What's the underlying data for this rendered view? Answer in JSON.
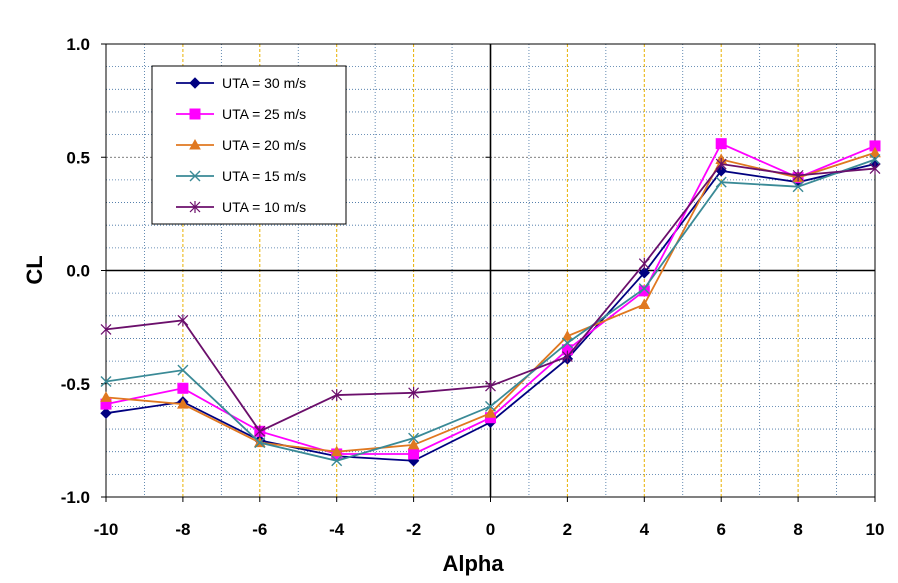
{
  "chart_data": {
    "type": "line",
    "xlabel": "Alpha",
    "ylabel": "CL",
    "xlim": [
      -10,
      10
    ],
    "ylim": [
      -1.0,
      1.0
    ],
    "x": [
      -10,
      -8,
      -6,
      -4,
      -2,
      0,
      2,
      4,
      6,
      8,
      10
    ],
    "x_tick_labels": [
      "-10",
      "-8",
      "-6",
      "-4",
      "-2",
      "0",
      "2",
      "4",
      "6",
      "8",
      "10"
    ],
    "y_ticks": [
      -1.0,
      -0.5,
      0.0,
      0.5,
      1.0
    ],
    "y_tick_labels": [
      "-1.0",
      "-0.5",
      "0.0",
      "0.5",
      "1.0"
    ],
    "grid": true,
    "legend_position": "top-left",
    "series": [
      {
        "name": "UTA = 30 m/s",
        "color": "#000080",
        "marker": "diamond",
        "values": [
          -0.63,
          -0.58,
          -0.75,
          -0.82,
          -0.84,
          -0.67,
          -0.39,
          -0.01,
          0.44,
          0.39,
          0.47
        ]
      },
      {
        "name": "UTA = 25 m/s",
        "color": "#FF00FF",
        "marker": "square",
        "values": [
          -0.59,
          -0.52,
          -0.71,
          -0.81,
          -0.81,
          -0.65,
          -0.35,
          -0.09,
          0.56,
          0.41,
          0.55
        ]
      },
      {
        "name": "UTA = 20 m/s",
        "color": "#E07820",
        "marker": "triangle",
        "values": [
          -0.56,
          -0.59,
          -0.76,
          -0.8,
          -0.77,
          -0.63,
          -0.29,
          -0.15,
          0.49,
          0.41,
          0.52
        ]
      },
      {
        "name": "UTA = 15 m/s",
        "color": "#3A8A96",
        "marker": "x",
        "values": [
          -0.49,
          -0.44,
          -0.76,
          -0.84,
          -0.74,
          -0.6,
          -0.32,
          -0.08,
          0.39,
          0.37,
          0.49
        ]
      },
      {
        "name": "UTA = 10 m/s",
        "color": "#6B0F6B",
        "marker": "star",
        "values": [
          -0.26,
          -0.22,
          -0.71,
          -0.55,
          -0.54,
          -0.51,
          -0.38,
          0.03,
          0.47,
          0.42,
          0.45
        ]
      }
    ]
  }
}
